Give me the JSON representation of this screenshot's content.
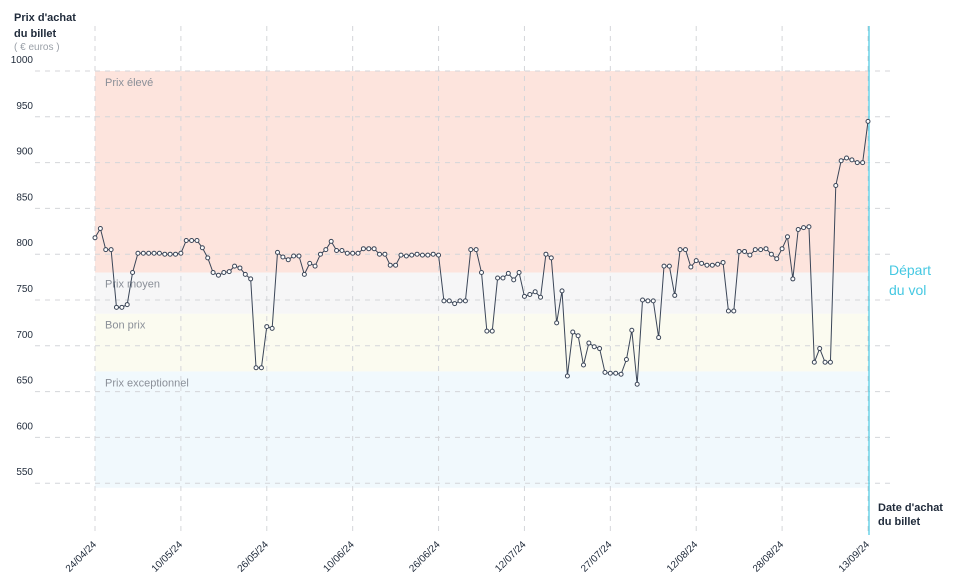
{
  "chart_data": {
    "type": "line",
    "y_title": [
      "Prix d'achat",
      "du billet"
    ],
    "y_unit": "( € euros )",
    "x_title": [
      "Date d'achat",
      "du billet"
    ],
    "annotation": [
      "Départ",
      "du vol"
    ],
    "annotation_color": "#45c8e2",
    "line_color": "#3b4658",
    "ylim": [
      500,
      1050
    ],
    "yticks": [
      550,
      600,
      650,
      700,
      750,
      800,
      850,
      900,
      950,
      1000
    ],
    "bands": [
      {
        "label": "Prix élevé",
        "from": 780,
        "to": 1000,
        "color": "#fde4dd"
      },
      {
        "label": "Prix moyen",
        "from": 735,
        "to": 780,
        "color": "#f6f6f7"
      },
      {
        "label": "Bon prix",
        "from": 672,
        "to": 735,
        "color": "#fbfbf0"
      },
      {
        "label": "Prix exceptionnel",
        "from": 545,
        "to": 672,
        "color": "#f1f9fd"
      }
    ],
    "categories": [
      "24/04/24",
      null,
      null,
      null,
      null,
      null,
      null,
      null,
      null,
      null,
      null,
      null,
      null,
      null,
      null,
      null,
      "10/05/24",
      null,
      null,
      null,
      null,
      null,
      null,
      null,
      null,
      null,
      null,
      null,
      null,
      null,
      null,
      null,
      "26/05/24",
      null,
      null,
      null,
      null,
      null,
      null,
      null,
      null,
      null,
      null,
      null,
      null,
      null,
      null,
      null,
      "10/06/24",
      null,
      null,
      null,
      null,
      null,
      null,
      null,
      null,
      null,
      null,
      null,
      null,
      null,
      null,
      null,
      "26/06/24",
      null,
      null,
      null,
      null,
      null,
      null,
      null,
      null,
      null,
      null,
      null,
      null,
      null,
      null,
      null,
      "12/07/24",
      null,
      null,
      null,
      null,
      null,
      null,
      null,
      null,
      null,
      null,
      null,
      null,
      null,
      null,
      null,
      "27/07/24",
      null,
      null,
      null,
      null,
      null,
      null,
      null,
      null,
      null,
      null,
      null,
      null,
      null,
      null,
      null,
      "12/08/24",
      null,
      null,
      null,
      null,
      null,
      null,
      null,
      null,
      null,
      null,
      null,
      null,
      null,
      null,
      null,
      "28/08/24",
      null,
      null,
      null,
      null,
      null,
      null,
      null,
      null,
      null,
      null,
      null,
      null,
      null,
      null,
      null,
      "13/09/24"
    ],
    "values": [
      818,
      828,
      805,
      805,
      742,
      742,
      745,
      780,
      801,
      801,
      801,
      801,
      801,
      800,
      800,
      800,
      801,
      815,
      815,
      815,
      807,
      796,
      780,
      777,
      780,
      781,
      787,
      785,
      778,
      773,
      676,
      676,
      721,
      719,
      802,
      797,
      794,
      798,
      798,
      778,
      790,
      787,
      800,
      805,
      814,
      804,
      804,
      801,
      801,
      801,
      806,
      806,
      806,
      800,
      800,
      788,
      788,
      799,
      798,
      799,
      800,
      799,
      799,
      800,
      799,
      749,
      749,
      746,
      749,
      749,
      805,
      805,
      780,
      716,
      716,
      774,
      774,
      779,
      772,
      780,
      754,
      756,
      759,
      753,
      800,
      796,
      725,
      760,
      667,
      715,
      711,
      679,
      703,
      699,
      697,
      671,
      670,
      670,
      669,
      685,
      717,
      658,
      750,
      749,
      749,
      709,
      787,
      787,
      755,
      805,
      805,
      786,
      793,
      790,
      788,
      788,
      789,
      791,
      738,
      738,
      803,
      803,
      799,
      805,
      805,
      806,
      800,
      795,
      806,
      819,
      773,
      827,
      829,
      830,
      682,
      697,
      682,
      682,
      875,
      902,
      905,
      903,
      900,
      900,
      945
    ]
  }
}
